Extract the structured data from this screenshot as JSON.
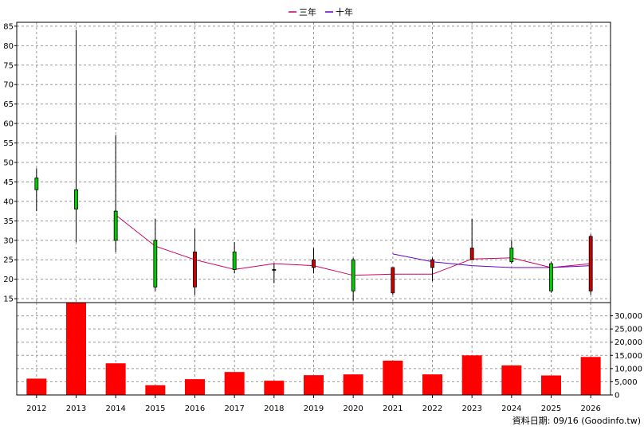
{
  "chart_data": {
    "type": "candlestick",
    "legend": {
      "placement": "top-center",
      "items": [
        {
          "label": "三年",
          "color": "#cc0066"
        },
        {
          "label": "十年",
          "color": "#6600cc"
        }
      ]
    },
    "categories": [
      "2012",
      "2013",
      "2014",
      "2015",
      "2016",
      "2017",
      "2018",
      "2019",
      "2020",
      "2021",
      "2022",
      "2023",
      "2024",
      "2025",
      "2026"
    ],
    "price": {
      "ylim": [
        14,
        86
      ],
      "ticks": [
        15,
        20,
        25,
        30,
        35,
        40,
        45,
        50,
        55,
        60,
        65,
        70,
        75,
        80,
        85
      ],
      "candles": [
        {
          "open": 43.0,
          "close": 46.0,
          "high": 48.5,
          "low": 37.5
        },
        {
          "open": 38.0,
          "close": 43.0,
          "high": 84.0,
          "low": 29.5
        },
        {
          "open": 30.0,
          "close": 37.5,
          "high": 57.0,
          "low": 27.0
        },
        {
          "open": 18.0,
          "close": 30.0,
          "high": 35.5,
          "low": 17.0
        },
        {
          "open": 27.0,
          "close": 18.0,
          "high": 33.0,
          "low": 16.0
        },
        {
          "open": 22.5,
          "close": 27.0,
          "high": 29.5,
          "low": 21.5
        },
        {
          "open": 22.5,
          "close": 22.5,
          "high": 24.0,
          "low": 19.0
        },
        {
          "open": 25.0,
          "close": 23.0,
          "high": 28.0,
          "low": 21.5
        },
        {
          "open": 17.0,
          "close": 25.0,
          "high": 25.5,
          "low": 14.5
        },
        {
          "open": 23.0,
          "close": 16.5,
          "high": 23.0,
          "low": 16.0
        },
        {
          "open": 25.0,
          "close": 23.0,
          "high": 25.5,
          "low": 19.5
        },
        {
          "open": 28.0,
          "close": 25.0,
          "high": 35.5,
          "low": 25.0
        },
        {
          "open": 24.5,
          "close": 28.0,
          "high": 30.0,
          "low": 24.0
        },
        {
          "open": 17.0,
          "close": 24.0,
          "high": 24.5,
          "low": 16.5
        },
        {
          "open": 31.0,
          "close": 17.0,
          "high": 31.5,
          "low": 16.0
        }
      ],
      "up_color": "#00cc00",
      "down_color": "#cc0000",
      "series": [
        {
          "name": "三年",
          "color": "#cc0066",
          "values": [
            null,
            null,
            36.5,
            28.5,
            25.0,
            22.5,
            24.0,
            23.5,
            21.0,
            21.3,
            21.3,
            25.2,
            25.5,
            23.0,
            24.0
          ]
        },
        {
          "name": "十年",
          "color": "#6600cc",
          "values": [
            null,
            null,
            null,
            null,
            null,
            null,
            null,
            null,
            null,
            26.5,
            24.5,
            23.5,
            23.0,
            23.0,
            23.5
          ]
        }
      ]
    },
    "volume": {
      "ylim": [
        0,
        35000
      ],
      "ticks": [
        0,
        5000,
        10000,
        15000,
        20000,
        25000,
        30000
      ],
      "tick_labels": [
        "0",
        "5,000",
        "10,000",
        "15,000",
        "20,000",
        "25,000",
        "30,000"
      ],
      "values": [
        6200,
        35000,
        12000,
        3700,
        6000,
        8700,
        5400,
        7500,
        7800,
        13000,
        7800,
        15000,
        11200,
        7400,
        14400
      ],
      "color": "#ff0000"
    },
    "grid": true
  },
  "footer": {
    "text": "資料日期: 09/16  (Goodinfo.tw)"
  }
}
